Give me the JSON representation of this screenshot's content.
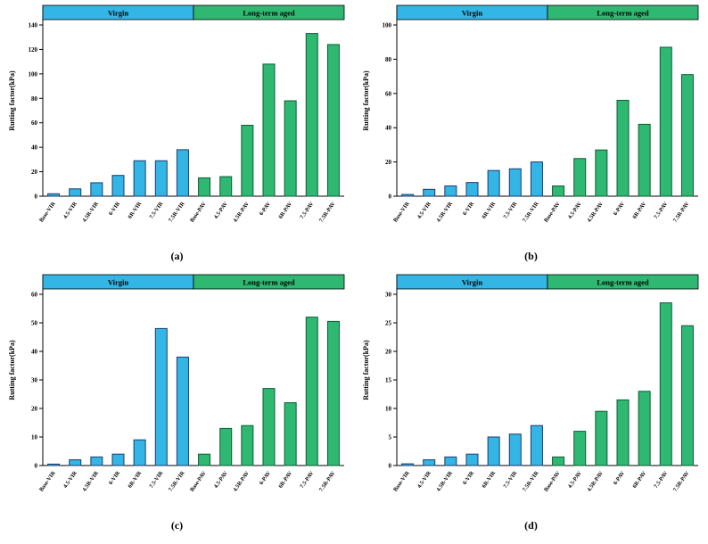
{
  "style": {
    "virgin_fill": "#33b5e5",
    "virgin_edge": "#1b3b6f",
    "aged_fill": "#2eb872",
    "aged_edge": "#0e5c36",
    "axis_color": "#000000",
    "text_color": "#000000"
  },
  "chart_data": [
    {
      "type": "bar",
      "caption": "(a)",
      "ylabel": "Rutting factor(kPa)",
      "ylim": [
        0,
        140
      ],
      "ytick_step": 20,
      "grid": false,
      "series": [
        {
          "name": "Virgin",
          "color_key": "virgin",
          "categories": [
            "Base-VIR",
            "4.5-VIR",
            "4.5R-VIR",
            "6-VIR",
            "6R-VIR",
            "7.5-VIR",
            "7.5R-VIR"
          ],
          "values": [
            2,
            6,
            11,
            17,
            29,
            29,
            38
          ]
        },
        {
          "name": "Long-term aged",
          "color_key": "aged",
          "categories": [
            "Base-PAV",
            "4.5-PAV",
            "4.5R-PAV",
            "6-PAV",
            "6R-PAV",
            "7.5-PAV",
            "7.5R-PAV"
          ],
          "values": [
            15,
            16,
            58,
            108,
            78,
            133,
            124
          ]
        }
      ]
    },
    {
      "type": "bar",
      "caption": "(b)",
      "ylabel": "Rutting factor(kPa)",
      "ylim": [
        0,
        100
      ],
      "ytick_step": 20,
      "grid": false,
      "series": [
        {
          "name": "Virgin",
          "color_key": "virgin",
          "categories": [
            "Base-VIR",
            "4.5-VIR",
            "4.5R-VIR",
            "6-VIR",
            "6R-VIR",
            "7.5-VIR",
            "7.5R-VIR"
          ],
          "values": [
            1,
            4,
            6,
            8,
            15,
            16,
            20
          ]
        },
        {
          "name": "Long-term aged",
          "color_key": "aged",
          "categories": [
            "Base-PAV",
            "4.5-PAV",
            "4.5R-PAV",
            "6-PAV",
            "6R-PAV",
            "7.5-PAV",
            "7.5R-PAV"
          ],
          "values": [
            6,
            22,
            27,
            56,
            42,
            87,
            71
          ]
        }
      ]
    },
    {
      "type": "bar",
      "caption": "(c)",
      "ylabel": "Rutting factor(kPa)",
      "ylim": [
        0,
        60
      ],
      "ytick_step": 10,
      "grid": false,
      "series": [
        {
          "name": "Virgin",
          "color_key": "virgin",
          "categories": [
            "Base-VIR",
            "4.5-VIR",
            "4.5R-VIR",
            "6-VIR",
            "6R-VIR",
            "7.5-VIR",
            "7.5R-VIR"
          ],
          "values": [
            0.5,
            2,
            3,
            4,
            9,
            48,
            38
          ]
        },
        {
          "name": "Long-term aged",
          "color_key": "aged",
          "categories": [
            "Base-PAV",
            "4.5-PAV",
            "4.5R-PAV",
            "6-PAV",
            "6R-PAV",
            "7.5-PAV",
            "7.5R-PAV"
          ],
          "values": [
            4,
            13,
            14,
            27,
            22,
            52,
            50.5
          ]
        }
      ]
    },
    {
      "type": "bar",
      "caption": "(d)",
      "ylabel": "Rutting factor(kPa)",
      "ylim": [
        0,
        30
      ],
      "ytick_step": 5,
      "grid": false,
      "series": [
        {
          "name": "Virgin",
          "color_key": "virgin",
          "categories": [
            "Base-VIR",
            "4.5-VIR",
            "4.5R-VIR",
            "6-VIR",
            "6R-VIR",
            "7.5-VIR",
            "7.5R-VIR"
          ],
          "values": [
            0.3,
            1,
            1.5,
            2,
            5,
            5.5,
            7
          ]
        },
        {
          "name": "Long-term aged",
          "color_key": "aged",
          "categories": [
            "Base-PAV",
            "4.5-PAV",
            "4.5R-PAV",
            "6-PAV",
            "6R-PAV",
            "7.5-PAV",
            "7.5R-PAV"
          ],
          "values": [
            1.5,
            6,
            9.5,
            11.5,
            13,
            28.5,
            24.5
          ]
        }
      ]
    }
  ]
}
